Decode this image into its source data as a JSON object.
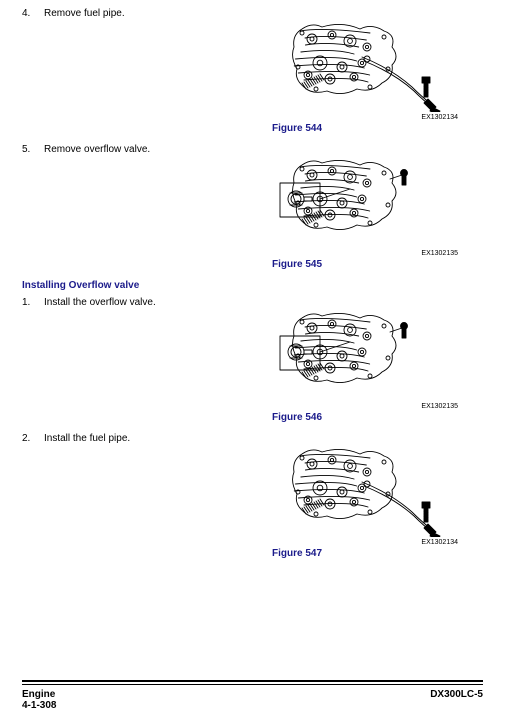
{
  "steps": [
    {
      "num": "4.",
      "text": "Remove fuel pipe."
    },
    {
      "num": "5.",
      "text": "Remove overflow valve."
    }
  ],
  "heading": "Installing Overflow valve",
  "steps2": [
    {
      "num": "1.",
      "text": "Install the overflow valve."
    },
    {
      "num": "2.",
      "text": "Install the fuel pipe."
    }
  ],
  "figures": [
    {
      "caption": "Figure 544",
      "code": "EX1302134",
      "variant": "pipe"
    },
    {
      "caption": "Figure 545",
      "code": "EX1302135",
      "variant": "valve"
    },
    {
      "caption": "Figure 546",
      "code": "EX1302135",
      "variant": "valve"
    },
    {
      "caption": "Figure 547",
      "code": "EX1302134",
      "variant": "pipe"
    }
  ],
  "footer": {
    "left_top": "Engine",
    "left_bottom": "4-1-308",
    "right": "DX300LC-5"
  },
  "style": {
    "heading_color": "#1a1a8a",
    "text_color": "#000000",
    "fig_stroke": "#000000",
    "fig_width": 180,
    "fig_height": 95
  }
}
